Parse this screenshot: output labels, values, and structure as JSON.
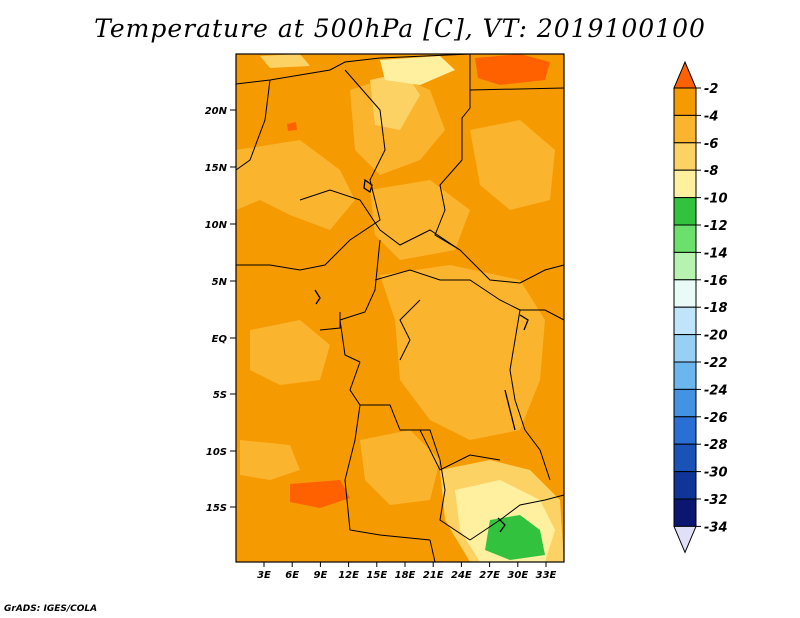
{
  "title": "Temperature at 500hPa [C], VT: 2019100100",
  "credit": "GrADS: IGES/COLA",
  "map": {
    "y_ticks": [
      "20N",
      "15N",
      "10N",
      "5N",
      "EQ",
      "5S",
      "10S",
      "15S"
    ],
    "x_ticks": [
      "3E",
      "6E",
      "9E",
      "12E",
      "15E",
      "18E",
      "21E",
      "24E",
      "27E",
      "30E",
      "33E"
    ],
    "dominant_field_color": "#f5a000"
  },
  "colorbar": {
    "labels": [
      "-2",
      "-4",
      "-6",
      "-8",
      "-10",
      "-12",
      "-14",
      "-16",
      "-18",
      "-20",
      "-22",
      "-24",
      "-26",
      "-28",
      "-30",
      "-32",
      "-34"
    ],
    "colors": [
      "#ff6000",
      "#f59a00",
      "#fbb42e",
      "#fdd264",
      "#fff0a0",
      "#33c23d",
      "#6ce06c",
      "#b6f2b0",
      "#e8fbf6",
      "#c0e4fa",
      "#96d0f4",
      "#6cb6ee",
      "#4492e4",
      "#2a70d4",
      "#1a52b8",
      "#0f3598",
      "#0a1670",
      "#e0e0f8"
    ]
  }
}
